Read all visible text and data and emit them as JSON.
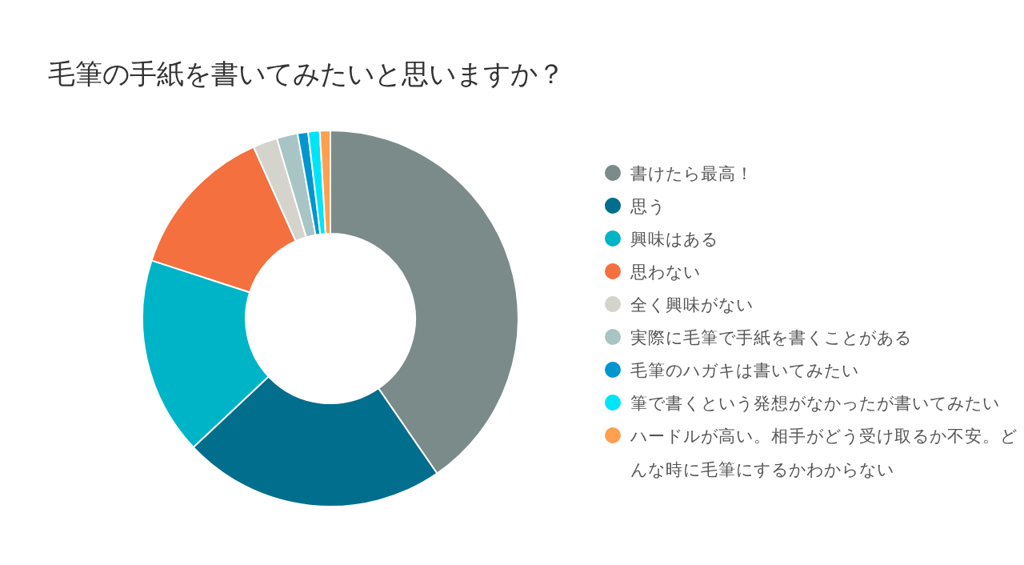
{
  "chart_data": {
    "type": "donut",
    "title": "毛筆の手紙を書いてみたいと思いますか？",
    "categories": [
      "書けたら最高！",
      "思う",
      "興味はある",
      "思わない",
      "全く興味がない",
      "実際に毛筆で手紙を書くことがある",
      "毛筆のハガキは書いてみたい",
      "筆で書くという発想がなかったが書いてみたい",
      "ハードルが高い。相手がどう受け取るか不安。どんな時に毛筆にするかわからない"
    ],
    "values": [
      40.4,
      22.6,
      17.0,
      13.3,
      2.1,
      1.8,
      0.9,
      1.0,
      0.9
    ],
    "colors": [
      "#7a8b8a",
      "#006e8c",
      "#00b4c8",
      "#f4703e",
      "#d4d4cc",
      "#a8c4c4",
      "#0096d0",
      "#00e4f8",
      "#ffa050"
    ],
    "legend": "right"
  }
}
